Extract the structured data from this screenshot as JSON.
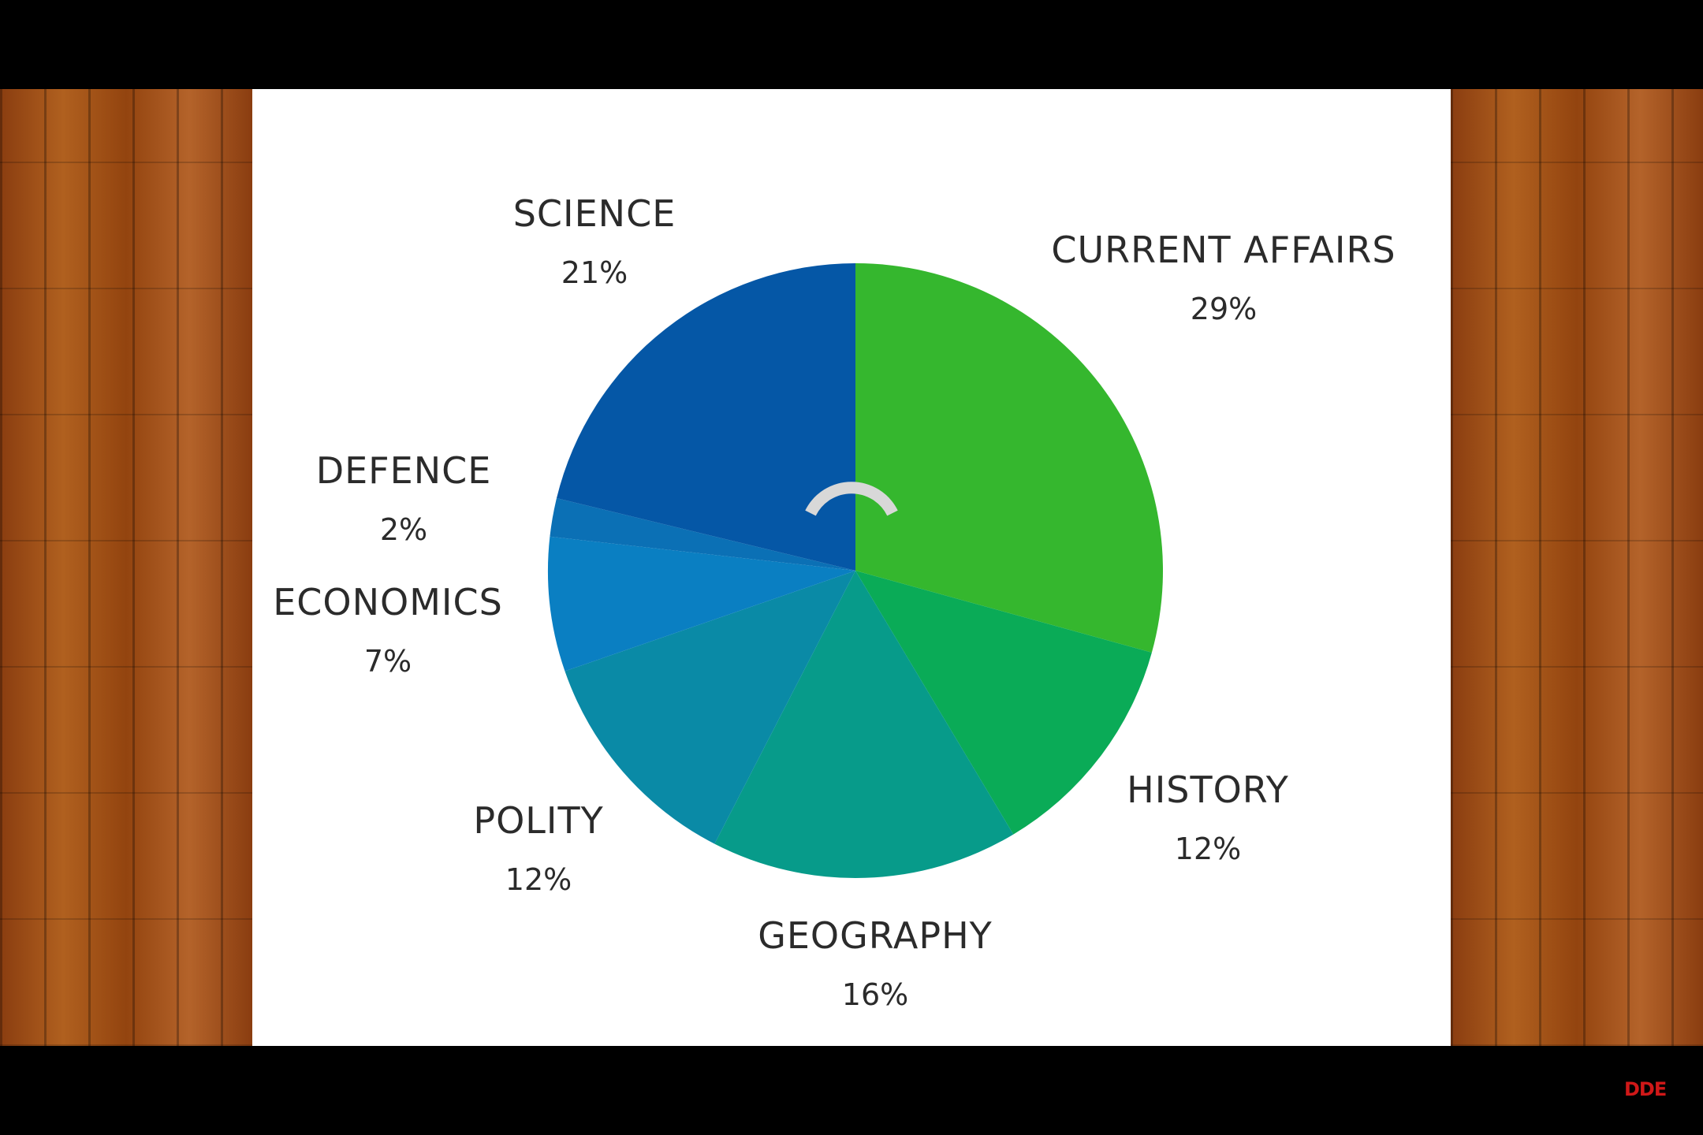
{
  "chart_data": {
    "type": "pie",
    "start_angle_deg": 0,
    "direction": "clockwise",
    "slices": [
      {
        "label": "CURRENT AFFAIRS",
        "value": 29,
        "value_label": "29%",
        "color": "#35b72e"
      },
      {
        "label": "HISTORY",
        "value": 12,
        "value_label": "12%",
        "color": "#0aab57"
      },
      {
        "label": "GEOGRAPHY",
        "value": 16,
        "value_label": "16%",
        "color": "#079b8a"
      },
      {
        "label": "POLITY",
        "value": 12,
        "value_label": "12%",
        "color": "#0a8aa6"
      },
      {
        "label": "ECONOMICS",
        "value": 7,
        "value_label": "7%",
        "color": "#0a7fc2"
      },
      {
        "label": "DEFENCE",
        "value": 2,
        "value_label": "2%",
        "color": "#0b70b5"
      },
      {
        "label": "SCIENCE",
        "value": 21,
        "value_label": "21%",
        "color": "#0557a6"
      }
    ]
  },
  "colors": {
    "background": "#000000",
    "slide": "#ffffff",
    "wood": "#9a4a16",
    "text": "#2b2b2b",
    "watermark": "#d01818"
  },
  "icons": {
    "loading": "loading-spinner-icon"
  },
  "watermark": "DDE"
}
